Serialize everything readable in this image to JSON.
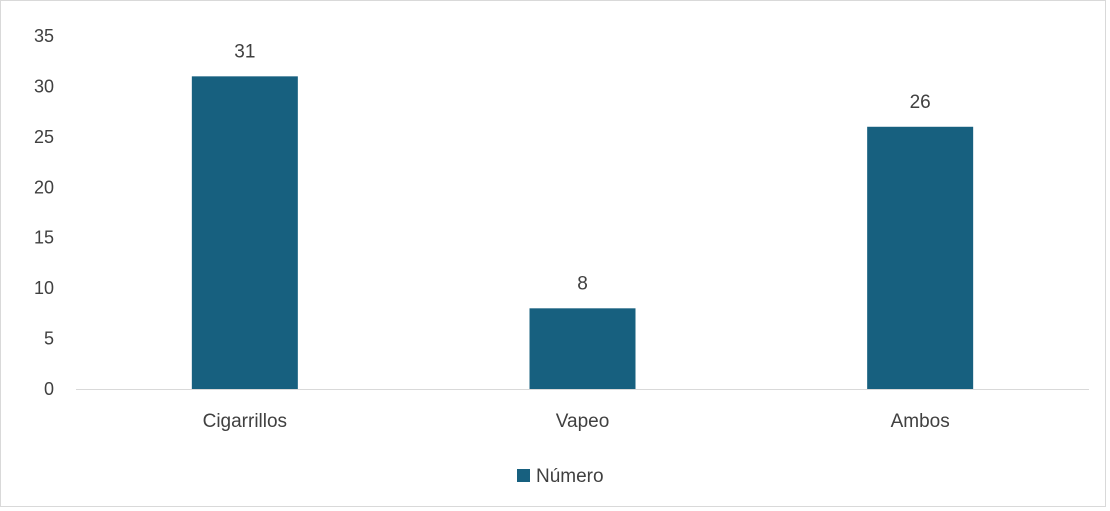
{
  "chart_data": {
    "type": "bar",
    "categories": [
      "Cigarrillos",
      "Vapeo",
      "Ambos"
    ],
    "series": [
      {
        "name": "Número",
        "values": [
          31,
          8,
          26
        ]
      }
    ],
    "ylim": [
      0,
      35
    ],
    "yticks": [
      0,
      5,
      10,
      15,
      20,
      25,
      30,
      35
    ],
    "data_labels": [
      "31",
      "8",
      "26"
    ],
    "grid": false,
    "legend_position": "bottom",
    "colors": {
      "bar": "#17607f",
      "axis": "#d9d9d9",
      "text": "#404040"
    }
  }
}
